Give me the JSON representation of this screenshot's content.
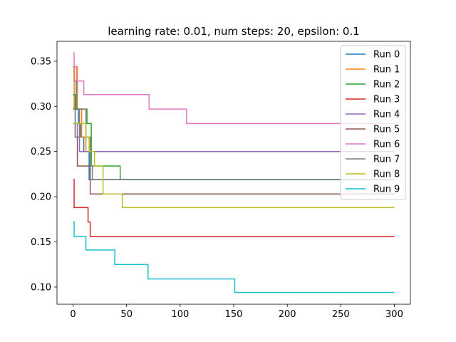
{
  "chart_data": {
    "type": "line",
    "title": "learning rate: 0.01, num steps: 20, epsilon: 0.1",
    "xlabel": "",
    "ylabel": "",
    "xlim": [
      -15,
      315
    ],
    "ylim": [
      0.081,
      0.372
    ],
    "x_ticks": [
      0,
      50,
      100,
      150,
      200,
      250,
      300
    ],
    "y_ticks": [
      0.1,
      0.15,
      0.2,
      0.25,
      0.3,
      0.35
    ],
    "x_tick_labels": [
      "0",
      "50",
      "100",
      "150",
      "200",
      "250",
      "300"
    ],
    "y_tick_labels": [
      "0.10",
      "0.15",
      "0.20",
      "0.25",
      "0.30",
      "0.35"
    ],
    "grid": false,
    "legend_position": "top-right",
    "line_style": "step",
    "series": [
      {
        "name": "Run 0",
        "color": "#1f77b4",
        "x": [
          0,
          1,
          3,
          5,
          7,
          10,
          15,
          300
        ],
        "values": [
          0.344,
          0.328,
          0.297,
          0.281,
          0.266,
          0.25,
          0.219,
          0.219
        ]
      },
      {
        "name": "Run 1",
        "color": "#ff7f0e",
        "x": [
          0,
          1,
          4,
          8,
          12,
          300
        ],
        "values": [
          0.297,
          0.344,
          0.297,
          0.266,
          0.25,
          0.25
        ]
      },
      {
        "name": "Run 2",
        "color": "#2ca02c",
        "x": [
          0,
          2,
          4,
          9,
          13,
          17,
          43,
          44,
          300
        ],
        "values": [
          0.313,
          0.297,
          0.297,
          0.297,
          0.281,
          0.234,
          0.234,
          0.219,
          0.219
        ]
      },
      {
        "name": "Run 3",
        "color": "#d62728",
        "x": [
          0,
          1,
          12,
          14,
          16,
          300
        ],
        "values": [
          0.219,
          0.188,
          0.188,
          0.172,
          0.156,
          0.156
        ]
      },
      {
        "name": "Run 4",
        "color": "#9467bd",
        "x": [
          0,
          2,
          4,
          6,
          9,
          300
        ],
        "values": [
          0.297,
          0.281,
          0.266,
          0.25,
          0.25,
          0.25
        ]
      },
      {
        "name": "Run 5",
        "color": "#8c564b",
        "x": [
          0,
          2,
          4,
          16,
          300
        ],
        "values": [
          0.281,
          0.266,
          0.234,
          0.203,
          0.203
        ]
      },
      {
        "name": "Run 6",
        "color": "#e377c2",
        "x": [
          0,
          1,
          3,
          10,
          71,
          106,
          300
        ],
        "values": [
          0.359,
          0.344,
          0.328,
          0.313,
          0.297,
          0.281,
          0.281
        ]
      },
      {
        "name": "Run 7",
        "color": "#7f7f7f",
        "x": [
          0,
          2,
          6,
          12,
          16,
          18,
          300
        ],
        "values": [
          0.297,
          0.266,
          0.297,
          0.266,
          0.234,
          0.219,
          0.219
        ]
      },
      {
        "name": "Run 8",
        "color": "#bcbd22",
        "x": [
          0,
          12,
          15,
          20,
          28,
          46,
          300
        ],
        "values": [
          0.281,
          0.266,
          0.25,
          0.234,
          0.203,
          0.188,
          0.188
        ]
      },
      {
        "name": "Run 9",
        "color": "#17becf",
        "x": [
          0,
          1,
          12,
          39,
          70,
          151,
          300
        ],
        "values": [
          0.172,
          0.156,
          0.141,
          0.125,
          0.109,
          0.094,
          0.094
        ]
      }
    ]
  }
}
